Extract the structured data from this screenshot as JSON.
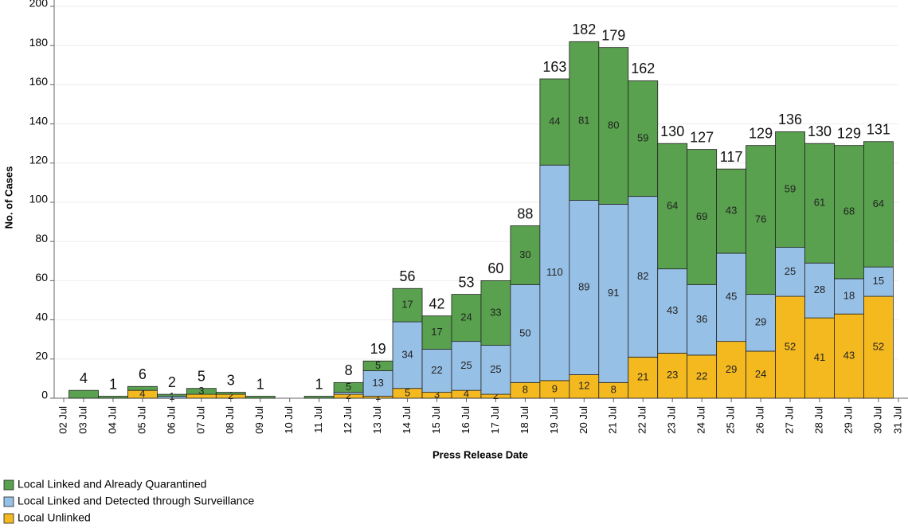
{
  "chart_data": {
    "type": "stacked-bar",
    "xlabel": "Press Release Date",
    "ylabel": "No. of Cases",
    "categories": [
      "02 Jul",
      "03 Jul",
      "04 Jul",
      "05 Jul",
      "06 Jul",
      "07 Jul",
      "08 Jul",
      "09 Jul",
      "10 Jul",
      "11 Jul",
      "12 Jul",
      "13 Jul",
      "14 Jul",
      "15 Jul",
      "16 Jul",
      "17 Jul",
      "18 Jul",
      "19 Jul",
      "20 Jul",
      "21 Jul",
      "22 Jul",
      "23 Jul",
      "24 Jul",
      "25 Jul",
      "26 Jul",
      "27 Jul",
      "28 Jul",
      "29 Jul",
      "30 Jul",
      "31 Jul"
    ],
    "series": [
      {
        "name": "Local Linked and Already Quarantined",
        "color": "#59a14f",
        "values": [
          null,
          4,
          1,
          2,
          1,
          3,
          1,
          1,
          null,
          1,
          5,
          5,
          17,
          17,
          24,
          33,
          30,
          44,
          81,
          80,
          59,
          64,
          69,
          43,
          76,
          59,
          61,
          68,
          64,
          null
        ],
        "value_labels": [
          null,
          null,
          null,
          null,
          null,
          "3",
          null,
          null,
          null,
          null,
          "5",
          "5",
          "17",
          "17",
          "24",
          "33",
          "30",
          "44",
          "81",
          "80",
          "59",
          "64",
          "69",
          "43",
          "76",
          "59",
          "61",
          "68",
          "64",
          null
        ]
      },
      {
        "name": "Local Linked and Detected through Surveillance",
        "color": "#97c0e6",
        "values": [
          null,
          null,
          null,
          null,
          1,
          null,
          null,
          null,
          null,
          null,
          1,
          13,
          34,
          22,
          25,
          25,
          50,
          110,
          89,
          91,
          82,
          43,
          36,
          45,
          29,
          25,
          28,
          18,
          15,
          null
        ],
        "value_labels": [
          null,
          null,
          null,
          null,
          "1",
          null,
          null,
          null,
          null,
          null,
          null,
          "13",
          "34",
          "22",
          "25",
          "25",
          "50",
          "110",
          "89",
          "91",
          "82",
          "43",
          "36",
          "45",
          "29",
          "25",
          "28",
          "18",
          "15",
          null
        ]
      },
      {
        "name": "Local Unlinked",
        "color": "#f5b920",
        "values": [
          null,
          null,
          null,
          4,
          null,
          2,
          2,
          null,
          null,
          null,
          2,
          1,
          5,
          3,
          4,
          2,
          8,
          9,
          12,
          8,
          21,
          23,
          22,
          29,
          24,
          52,
          41,
          43,
          52,
          null
        ],
        "value_labels": [
          null,
          null,
          null,
          "4",
          null,
          null,
          "2",
          null,
          null,
          null,
          "2",
          "1",
          "5",
          "3",
          "4",
          "2",
          "8",
          "9",
          "12",
          "8",
          "21",
          "23",
          "22",
          "29",
          "24",
          "52",
          "41",
          "43",
          "52",
          null
        ]
      }
    ],
    "totals": [
      null,
      4,
      1,
      6,
      2,
      5,
      3,
      1,
      null,
      1,
      8,
      19,
      56,
      42,
      53,
      60,
      88,
      163,
      182,
      179,
      162,
      130,
      127,
      117,
      129,
      136,
      130,
      129,
      131,
      null
    ],
    "ylim": [
      0,
      200
    ],
    "yticks": [
      0,
      20,
      40,
      60,
      80,
      100,
      120,
      140,
      160,
      180,
      200
    ],
    "grid": true
  }
}
